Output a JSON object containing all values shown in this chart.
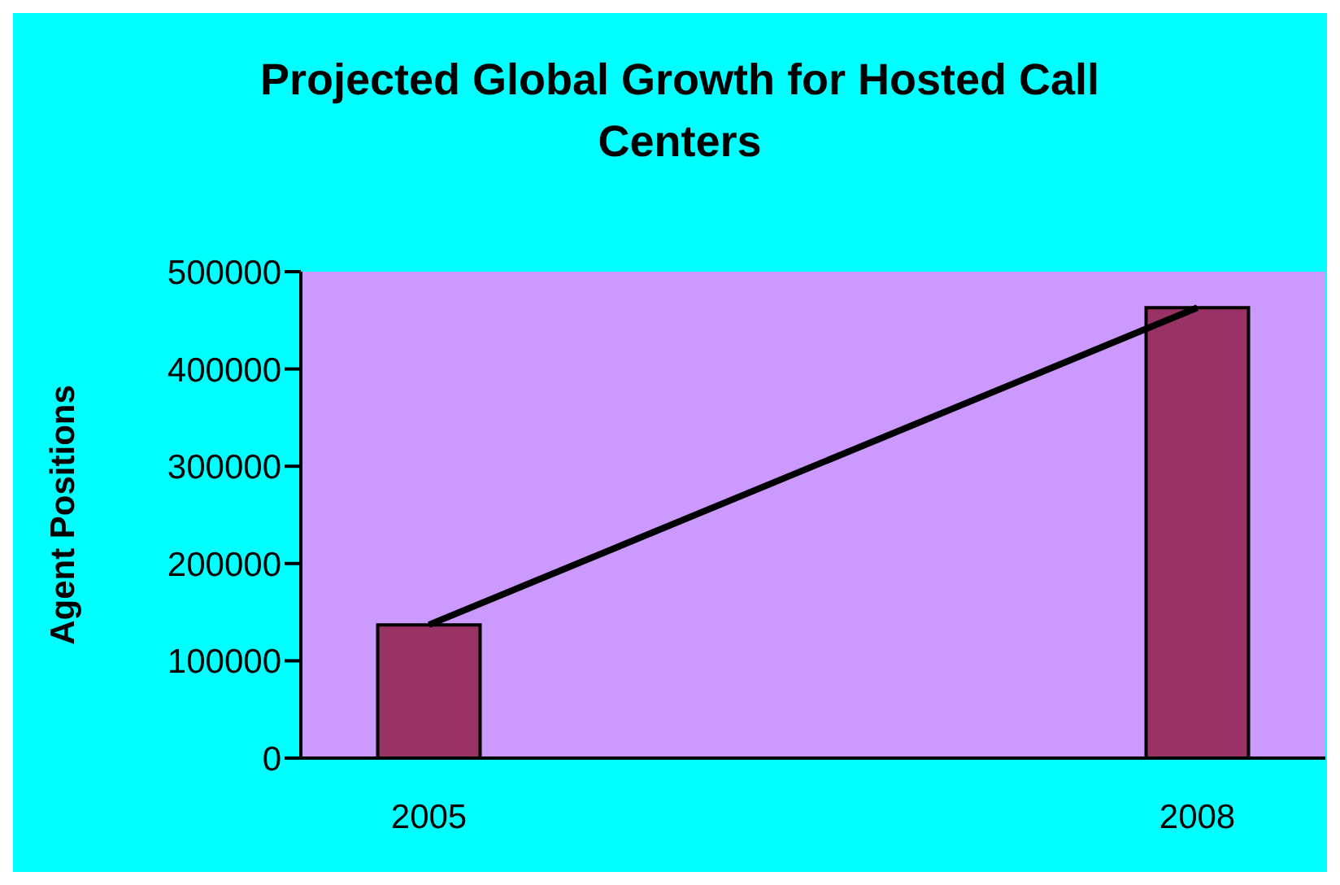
{
  "chart_data": {
    "type": "bar",
    "title": "Projected Global Growth for Hosted Call Centers",
    "ylabel": "Agent Positions",
    "categories": [
      "2005",
      null,
      null,
      "2008"
    ],
    "series": [
      {
        "color": "#993366",
        "values": [
          137000,
          null,
          null,
          463000
        ]
      },
      {
        "type": "line",
        "color": "#000000",
        "values": [
          137000,
          null,
          null,
          463000
        ]
      }
    ],
    "ylim": [
      0,
      500000
    ],
    "yticks": [
      0,
      100000,
      200000,
      300000,
      400000,
      500000
    ],
    "grid": false,
    "legend": false,
    "marker": "none",
    "line_style": "solid"
  }
}
